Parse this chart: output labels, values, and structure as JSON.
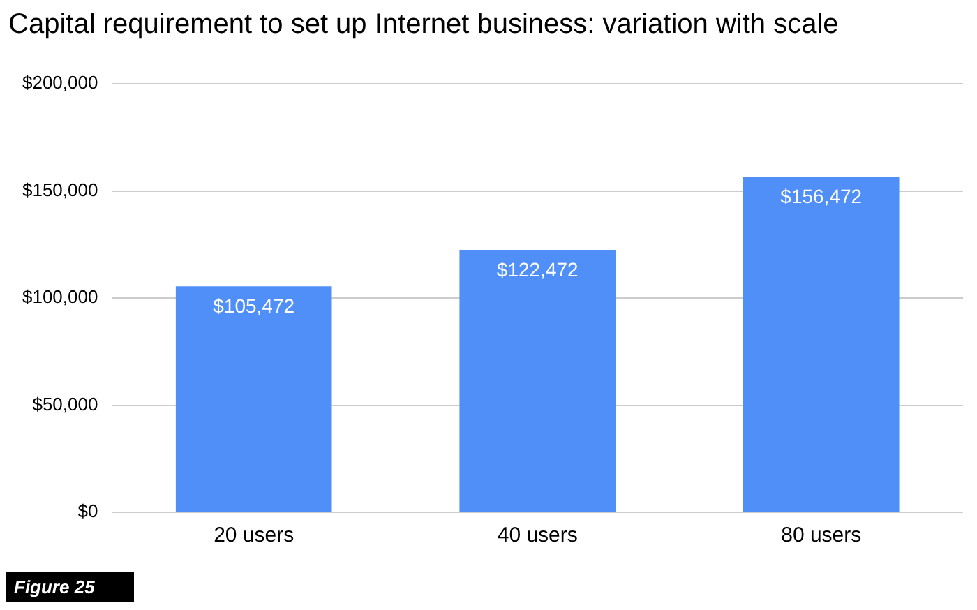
{
  "chart_data": {
    "type": "bar",
    "title": "Capital requirement to set up Internet business: variation with scale",
    "categories": [
      "20 users",
      "40 users",
      "80 users"
    ],
    "values": [
      105472,
      122472,
      156472
    ],
    "value_labels": [
      "$105,472",
      "$122,472",
      "$156,472"
    ],
    "color": "#4f8ff7",
    "ylim": [
      0,
      200000
    ],
    "yticks": [
      {
        "value": 0,
        "label": "$0"
      },
      {
        "value": 50000,
        "label": "$50,000"
      },
      {
        "value": 100000,
        "label": "$100,000"
      },
      {
        "value": 150000,
        "label": "$150,000"
      },
      {
        "value": 200000,
        "label": "$200,000"
      }
    ],
    "grid": "y",
    "legend": false,
    "annotations": [
      "Figure 25"
    ]
  }
}
